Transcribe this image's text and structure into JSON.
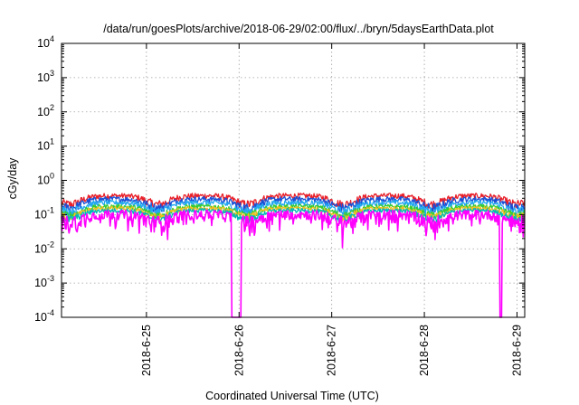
{
  "chart_data": {
    "type": "line",
    "title": "/data/run/goesPlots/archive/2018-06-29/02:00/flux/../bryn/5daysEarthData.plot",
    "xlabel": "Coordinated Universal Time (UTC)",
    "ylabel": "cGy/day",
    "yscale": "log",
    "ylim": [
      0.0001,
      10000
    ],
    "y_ticks": [
      {
        "base": "10",
        "exp": "-4",
        "value": 0.0001
      },
      {
        "base": "10",
        "exp": "-3",
        "value": 0.001
      },
      {
        "base": "10",
        "exp": "-2",
        "value": 0.01
      },
      {
        "base": "10",
        "exp": "-1",
        "value": 0.1
      },
      {
        "base": "10",
        "exp": "0",
        "value": 1
      },
      {
        "base": "10",
        "exp": "1",
        "value": 10
      },
      {
        "base": "10",
        "exp": "2",
        "value": 100
      },
      {
        "base": "10",
        "exp": "3",
        "value": 1000
      },
      {
        "base": "10",
        "exp": "4",
        "value": 10000
      }
    ],
    "xlim": [
      "2018-06-24T02:00",
      "2018-06-29T02:00"
    ],
    "x_ticks": [
      {
        "label": "2018-6-25",
        "value": "2018-06-25"
      },
      {
        "label": "2018-6-26",
        "value": "2018-06-26"
      },
      {
        "label": "2018-6-27",
        "value": "2018-06-27"
      },
      {
        "label": "2018-6-28",
        "value": "2018-06-28"
      },
      {
        "label": "2018-6-29",
        "value": "2018-06-29"
      }
    ],
    "grid": true,
    "series": [
      {
        "color": "#e8202a",
        "baseline": 0.35,
        "amplitude": 0.1
      },
      {
        "color": "#1a4fd6",
        "baseline": 0.28,
        "amplitude": 0.08
      },
      {
        "color": "#22a8f0",
        "baseline": 0.22,
        "amplitude": 0.06
      },
      {
        "color": "#33cc33",
        "baseline": 0.17,
        "amplitude": 0.04
      },
      {
        "color": "#f0c020",
        "baseline": 0.15,
        "amplitude": 0.035
      },
      {
        "color": "#00b8b8",
        "baseline": 0.13,
        "amplitude": 0.03
      },
      {
        "color": "#ff00ff",
        "baseline": 0.1,
        "amplitude": 0.05
      }
    ],
    "daily_dips": [
      "2018-06-24T04:00",
      "2018-06-25T03:00",
      "2018-06-26T02:00",
      "2018-06-27T03:00",
      "2018-06-28T02:00",
      "2018-06-29T00:00"
    ],
    "magenta_dropouts": [
      {
        "start": "2018-06-25T22:00",
        "end": "2018-06-26T00:30",
        "min": 0.0001
      },
      {
        "start": "2018-06-28T19:30",
        "end": "2018-06-28T20:00",
        "min": 0.0001
      }
    ]
  }
}
